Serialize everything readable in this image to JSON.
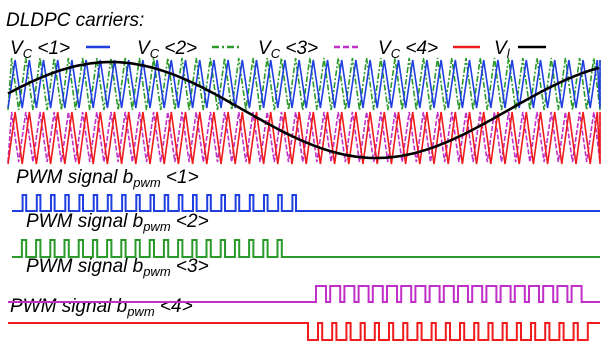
{
  "title": "DLDPC carriers:",
  "legend": [
    {
      "base": "V",
      "sub": "C",
      "suffix": " <1>",
      "color": "#1f3fe0",
      "style": "solid"
    },
    {
      "base": "V",
      "sub": "C",
      "suffix": " <2>",
      "color": "#2a9a2a",
      "style": "dashdot"
    },
    {
      "base": "V",
      "sub": "C",
      "suffix": " <3>",
      "color": "#c030c8",
      "style": "dashed"
    },
    {
      "base": "V",
      "sub": "C",
      "suffix": " <4>",
      "color": "#ee1c1c",
      "style": "solid"
    },
    {
      "base": "V",
      "sub": "l",
      "suffix": "",
      "color": "#000000",
      "style": "solid"
    }
  ],
  "pwm_signals": [
    {
      "prefix": "PWM signal b",
      "sub": "pwm",
      "suffix": " <1>",
      "color": "#1f3fe0"
    },
    {
      "prefix": "PWM signal b",
      "sub": "pwm",
      "suffix": " <2>",
      "color": "#2a9a2a"
    },
    {
      "prefix": "PWM signal b",
      "sub": "pwm",
      "suffix": " <3>",
      "color": "#c030c8"
    },
    {
      "prefix": "PWM signal b",
      "sub": "pwm",
      "suffix": " <4>",
      "color": "#ee1c1c"
    }
  ]
}
